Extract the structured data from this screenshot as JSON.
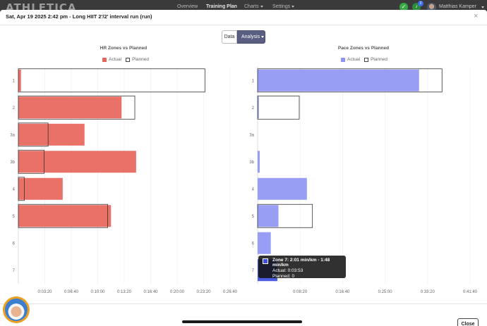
{
  "app": {
    "logo": "ATHLETICA"
  },
  "nav": [
    {
      "label": "Overview"
    },
    {
      "label": "Training Plan"
    },
    {
      "label": "Charts"
    },
    {
      "label": "Settings"
    }
  ],
  "user": {
    "name": "Matthias Kamper",
    "notification_count": "2"
  },
  "modal": {
    "title": "Sat, Apr 19 2025 2:42 pm - Long HIIT 2'/2' interval run (run)",
    "tab_data": "Data",
    "tab_analysis": "Analysis",
    "close_label": "Close"
  },
  "colors": {
    "hr_actual": "#e8655a",
    "pace_actual": "#8f96f2",
    "planned_outline": "#333333",
    "tooltip_swatch": "#3d4ee0"
  },
  "chart_data": [
    {
      "type": "bar",
      "orientation": "horizontal",
      "title": "HR Zones vs Planned",
      "legend": [
        "Actual",
        "Planned"
      ],
      "categories": [
        "1",
        "2",
        "3a",
        "3b",
        "4",
        "5",
        "6",
        "7"
      ],
      "x_tick_labels": [
        "0:03:20",
        "0:06:40",
        "0:10:00",
        "0:13:20",
        "0:16:40",
        "0:20:00",
        "0:23:20",
        "0:26:40"
      ],
      "xlim_seconds": [
        0,
        1600
      ],
      "grid": true,
      "series": [
        {
          "name": "Actual",
          "values_seconds": [
            20,
            780,
            500,
            890,
            335,
            700,
            0,
            0
          ]
        },
        {
          "name": "Planned",
          "values_seconds": [
            1410,
            880,
            225,
            195,
            45,
            675,
            0,
            0
          ]
        }
      ]
    },
    {
      "type": "bar",
      "orientation": "horizontal",
      "title": "Pace Zones vs Planned",
      "legend": [
        "Actual",
        "Planned"
      ],
      "categories": [
        "1",
        "2",
        "3a",
        "3b",
        "4",
        "5",
        "6",
        "7"
      ],
      "x_tick_labels": [
        "0:08:20",
        "0:16:40",
        "0:25:00",
        "0:33:20",
        "0:41:40"
      ],
      "xlim_seconds": [
        0,
        2500
      ],
      "grid": true,
      "series": [
        {
          "name": "Actual",
          "values_seconds": [
            1900,
            15,
            0,
            25,
            580,
            245,
            155,
            233
          ]
        },
        {
          "name": "Planned",
          "values_seconds": [
            2170,
            490,
            0,
            0,
            0,
            645,
            0,
            0
          ]
        }
      ],
      "tooltip": {
        "title": "Zone 7: 2:01 min/km - 1:48 min/km",
        "actual": "Actual: 0:03:53",
        "planned": "Planned: 0"
      }
    }
  ]
}
